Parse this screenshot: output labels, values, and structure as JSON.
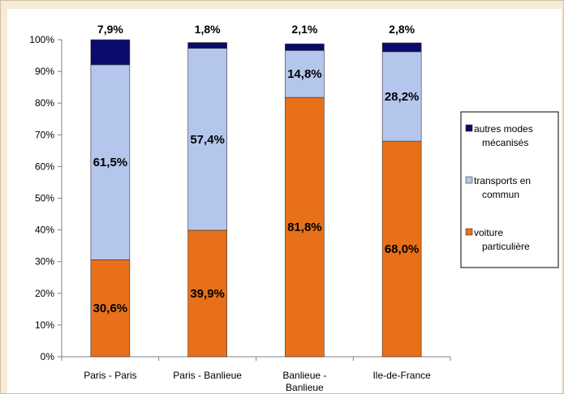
{
  "colors": {
    "autres": "#0b0b6b",
    "transports": "#b4c6ec",
    "voiture": "#e8701a"
  },
  "chart_data": {
    "type": "bar",
    "stacked": true,
    "categories": [
      [
        "Paris - Paris"
      ],
      [
        "Paris - Banlieue"
      ],
      [
        "Banlieue -",
        "Banlieue"
      ],
      [
        "Ile-de-France"
      ]
    ],
    "series": [
      {
        "name": "voiture particulière",
        "legend_lines": [
          "voiture",
          "particulière"
        ],
        "values": [
          30.6,
          39.9,
          81.8,
          68.0
        ],
        "labels": [
          "30,6%",
          "39,9%",
          "81,8%",
          "68,0%"
        ]
      },
      {
        "name": "transports en commun",
        "legend_lines": [
          "transports en",
          "commun"
        ],
        "values": [
          61.5,
          57.4,
          14.8,
          28.2
        ],
        "labels": [
          "61,5%",
          "57,4%",
          "14,8%",
          "28,2%"
        ]
      },
      {
        "name": "autres modes mécanisés",
        "legend_lines": [
          "autres modes",
          "mécanisés"
        ],
        "values": [
          7.9,
          1.8,
          2.1,
          2.8
        ],
        "labels": [
          "7,9%",
          "1,8%",
          "2,1%",
          "2,8%"
        ]
      }
    ],
    "y_ticks": [
      "0%",
      "10%",
      "20%",
      "30%",
      "40%",
      "50%",
      "60%",
      "70%",
      "80%",
      "90%",
      "100%"
    ],
    "ylim": [
      0,
      100
    ],
    "grid": false,
    "legend_position": "right"
  }
}
